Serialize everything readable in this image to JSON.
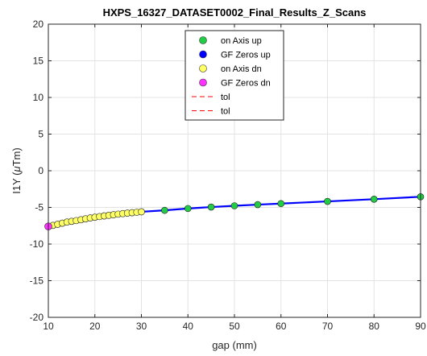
{
  "chart_data": {
    "type": "scatter",
    "title": "HXPS_16327_DATASET0002_Final_Results_Z_Scans",
    "xlabel": "gap (mm)",
    "ylabel_main": "I1Y (",
    "ylabel_mu": "μ",
    "ylabel_rest": "Tm)",
    "xlim": [
      10,
      90
    ],
    "ylim": [
      -20,
      20
    ],
    "xticks": [
      "10",
      "20",
      "30",
      "40",
      "50",
      "60",
      "70",
      "80",
      "90"
    ],
    "yticks": [
      "-20",
      "-15",
      "-10",
      "-5",
      "0",
      "5",
      "10",
      "15",
      "20"
    ],
    "grid": true,
    "legend_position": "top-center",
    "series": [
      {
        "name": "on Axis up",
        "marker": "circle",
        "color": "#22cc44",
        "x": [
          10,
          11,
          12,
          13,
          14,
          15,
          16,
          17,
          18,
          19,
          20,
          21,
          22,
          23,
          24,
          25,
          26,
          27,
          28,
          29,
          30,
          35,
          40,
          45,
          50,
          55,
          60,
          70,
          80,
          90
        ],
        "y": [
          -7.6,
          -7.45,
          -7.3,
          -7.15,
          -7.0,
          -6.9,
          -6.8,
          -6.68,
          -6.56,
          -6.44,
          -6.34,
          -6.25,
          -6.16,
          -6.08,
          -6.0,
          -5.92,
          -5.85,
          -5.78,
          -5.72,
          -5.66,
          -5.6,
          -5.4,
          -5.15,
          -4.95,
          -4.78,
          -4.62,
          -4.48,
          -4.18,
          -3.88,
          -3.55
        ]
      },
      {
        "name": "GF Zeros up",
        "marker": "line",
        "color": "#0000ff",
        "x": [
          10,
          11,
          12,
          13,
          14,
          15,
          16,
          17,
          18,
          19,
          20,
          21,
          22,
          23,
          24,
          25,
          26,
          27,
          28,
          29,
          30,
          35,
          40,
          45,
          50,
          55,
          60,
          70,
          80,
          90
        ],
        "y": [
          -7.6,
          -7.45,
          -7.3,
          -7.15,
          -7.0,
          -6.9,
          -6.8,
          -6.68,
          -6.56,
          -6.44,
          -6.34,
          -6.25,
          -6.16,
          -6.08,
          -6.0,
          -5.92,
          -5.85,
          -5.78,
          -5.72,
          -5.66,
          -5.6,
          -5.4,
          -5.15,
          -4.95,
          -4.78,
          -4.62,
          -4.48,
          -4.18,
          -3.88,
          -3.55
        ]
      },
      {
        "name": "on Axis dn",
        "marker": "circle",
        "color": "#ffff66",
        "x": [
          10,
          11,
          12,
          13,
          14,
          15,
          16,
          17,
          18,
          19,
          20,
          21,
          22,
          23,
          24,
          25,
          26,
          27,
          28,
          29,
          30
        ],
        "y": [
          -7.6,
          -7.45,
          -7.3,
          -7.15,
          -7.0,
          -6.9,
          -6.8,
          -6.68,
          -6.56,
          -6.44,
          -6.34,
          -6.25,
          -6.16,
          -6.08,
          -6.0,
          -5.92,
          -5.85,
          -5.78,
          -5.72,
          -5.66,
          -5.6
        ]
      },
      {
        "name": "GF Zeros dn",
        "marker": "circle",
        "color": "#ff33ff",
        "x": [
          10
        ],
        "y": [
          -7.6
        ]
      },
      {
        "name": "tol",
        "marker": "dashed-line",
        "color": "#ff0000",
        "x": [
          10,
          90
        ],
        "y": [
          20,
          20
        ]
      },
      {
        "name": "tol",
        "marker": "dashed-line",
        "color": "#ff0000",
        "x": [
          10,
          90
        ],
        "y": [
          -20,
          -20
        ]
      }
    ]
  }
}
